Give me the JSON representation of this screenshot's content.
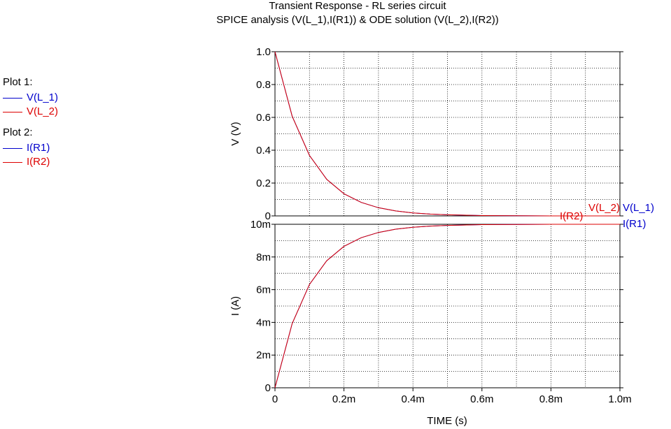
{
  "title": "Transient Response  -  RL series circuit",
  "subtitle": "SPICE analysis (V(L_1),I(R1)) & ODE solution (V(L_2),I(R2))",
  "legend": {
    "plot1_label": "Plot 1:",
    "plot1_items": [
      {
        "name": "V(L_1)",
        "color": "#0000cc"
      },
      {
        "name": "V(L_2)",
        "color": "#dd0000"
      }
    ],
    "plot2_label": "Plot 2:",
    "plot2_items": [
      {
        "name": "I(R1)",
        "color": "#0000cc"
      },
      {
        "name": "I(R2)",
        "color": "#dd0000"
      }
    ]
  },
  "chart_data": [
    {
      "type": "line",
      "ylabel": "V  (V)",
      "xlim": [
        0,
        0.001
      ],
      "ylim": [
        0,
        1.0
      ],
      "yticks": [
        0,
        0.2,
        0.4,
        0.6,
        0.8,
        1.0
      ],
      "ytick_labels": [
        "0",
        "0.2",
        "0.4",
        "0.6",
        "0.8",
        "1.0"
      ],
      "grid": true,
      "x": [
        0,
        5e-05,
        0.0001,
        0.00015,
        0.0002,
        0.00025,
        0.0003,
        0.00035,
        0.0004,
        0.00045,
        0.0005,
        0.0006,
        0.0007,
        0.0008,
        0.0009,
        0.001
      ],
      "series": [
        {
          "name": "V(L_1)",
          "color": "#0000cc",
          "values": [
            1.0,
            0.607,
            0.368,
            0.223,
            0.135,
            0.082,
            0.05,
            0.03,
            0.018,
            0.011,
            0.007,
            0.002,
            0.001,
            0.0,
            0.0,
            0.0
          ]
        },
        {
          "name": "V(L_2)",
          "color": "#dd0000",
          "values": [
            1.0,
            0.607,
            0.368,
            0.223,
            0.135,
            0.082,
            0.05,
            0.03,
            0.018,
            0.011,
            0.007,
            0.002,
            0.001,
            0.0,
            0.0,
            0.0
          ]
        }
      ]
    },
    {
      "type": "line",
      "xlabel": "TIME  (s)",
      "ylabel": "I  (A)",
      "xlim": [
        0,
        0.001
      ],
      "ylim": [
        0,
        0.01
      ],
      "yticks": [
        0,
        0.002,
        0.004,
        0.006,
        0.008,
        0.01
      ],
      "ytick_labels": [
        "0",
        "2m",
        "4m",
        "6m",
        "8m",
        "10m"
      ],
      "xticks": [
        0,
        0.0002,
        0.0004,
        0.0006,
        0.0008,
        0.001
      ],
      "xtick_labels": [
        "0",
        "0.2m",
        "0.4m",
        "0.6m",
        "0.8m",
        "1.0m"
      ],
      "grid": true,
      "x": [
        0,
        5e-05,
        0.0001,
        0.00015,
        0.0002,
        0.00025,
        0.0003,
        0.00035,
        0.0004,
        0.00045,
        0.0005,
        0.0006,
        0.0007,
        0.0008,
        0.0009,
        0.001
      ],
      "series": [
        {
          "name": "I(R1)",
          "color": "#0000cc",
          "values": [
            0.0,
            0.00393,
            0.00632,
            0.00777,
            0.00865,
            0.00918,
            0.0095,
            0.0097,
            0.00982,
            0.00989,
            0.00993,
            0.00998,
            0.00999,
            0.01,
            0.01,
            0.01
          ]
        },
        {
          "name": "I(R2)",
          "color": "#dd0000",
          "values": [
            0.0,
            0.00393,
            0.00632,
            0.00777,
            0.00865,
            0.00918,
            0.0095,
            0.0097,
            0.00982,
            0.00989,
            0.00993,
            0.00998,
            0.00999,
            0.01,
            0.01,
            0.01
          ]
        }
      ]
    }
  ]
}
